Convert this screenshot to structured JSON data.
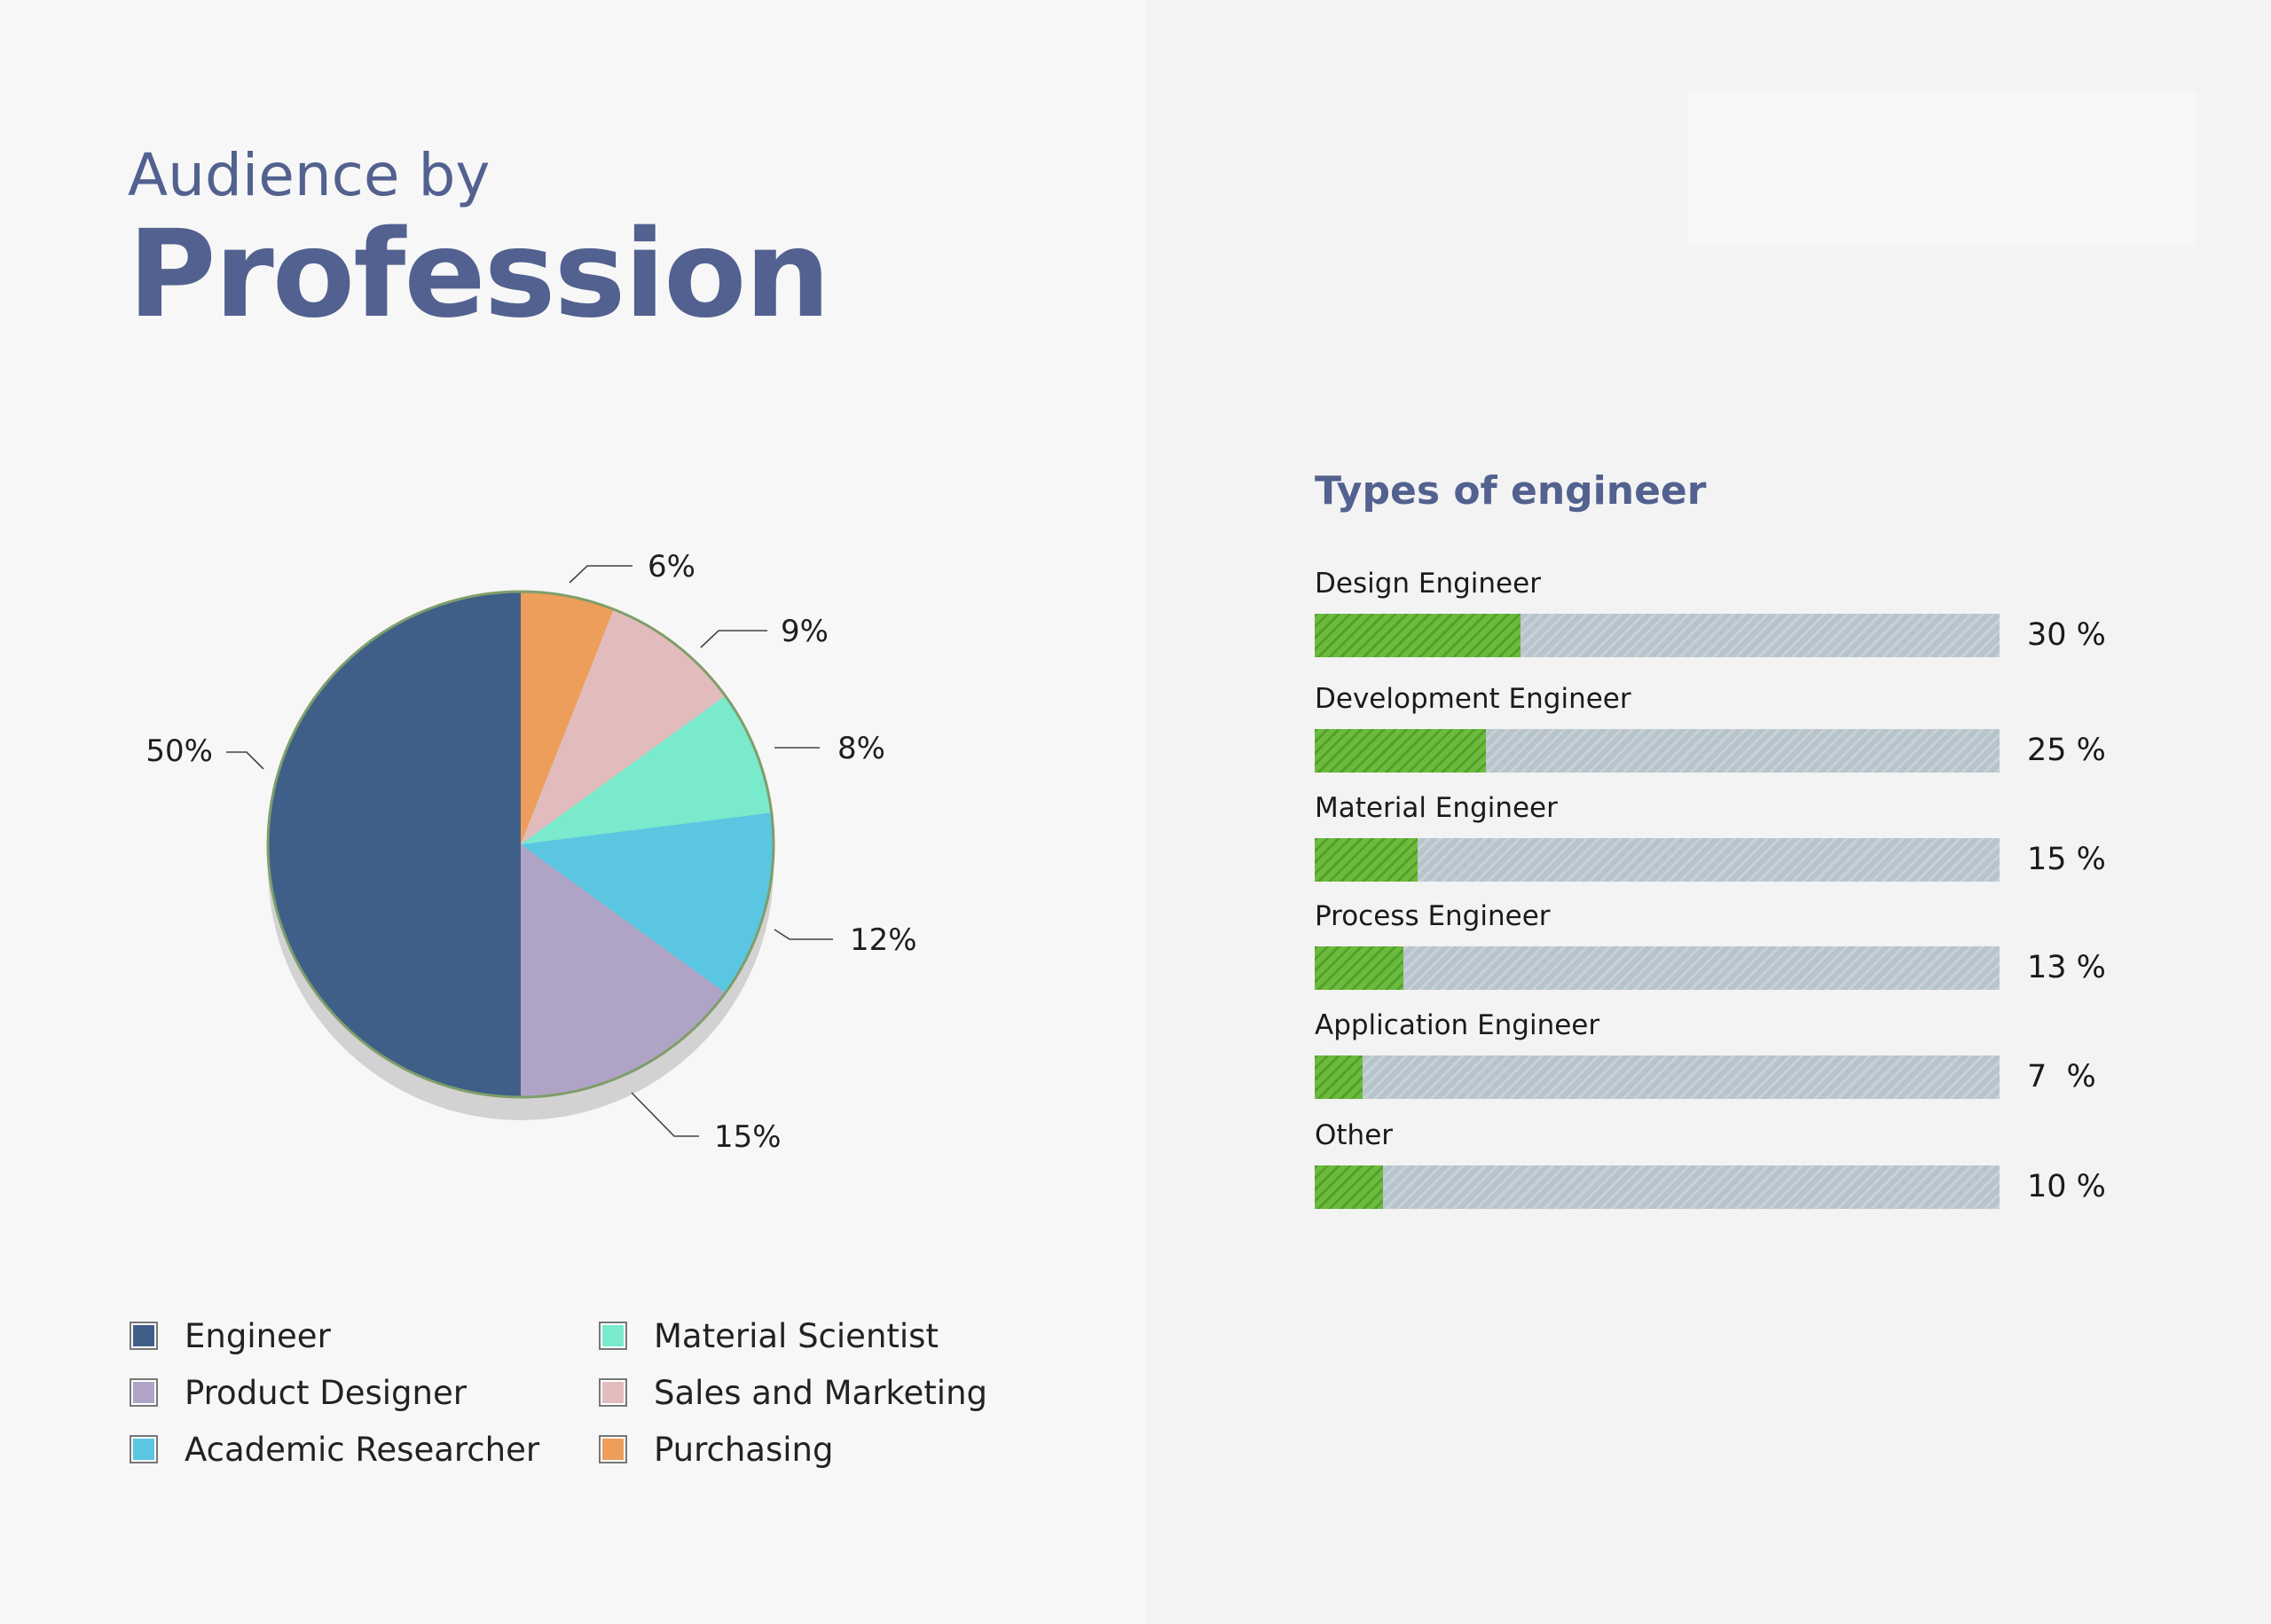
{
  "header": {
    "title_line1": "Audience by",
    "title_line2": "Profession"
  },
  "chart_data": [
    {
      "type": "pie",
      "title": "",
      "slices": [
        {
          "name": "Engineer",
          "value": 50,
          "label": "50%",
          "color": "#3f5f89"
        },
        {
          "name": "Product Designer",
          "value": 15,
          "label": "15%",
          "color": "#b0a4c6"
        },
        {
          "name": "Academic Researcher",
          "value": 12,
          "label": "12%",
          "color": "#5bc6e2"
        },
        {
          "name": "Material Scientist",
          "value": 8,
          "label": "8%",
          "color": "#79eacc"
        },
        {
          "name": "Sales and Marketing",
          "value": 9,
          "label": "9%",
          "color": "#e2bcbc"
        },
        {
          "name": "Purchasing",
          "value": 6,
          "label": "6%",
          "color": "#ec9e5a"
        }
      ],
      "legend": {
        "placement": "bottom",
        "columns": 2
      }
    },
    {
      "type": "bar",
      "orientation": "horizontal",
      "title": "Types of engineer",
      "categories": [
        "Design Engineer",
        "Development Engineer",
        "Material Engineer",
        "Process Engineer",
        "Application Engineer",
        "Other"
      ],
      "values": [
        30,
        25,
        15,
        13,
        7,
        10
      ],
      "value_labels": [
        "30 %",
        "25 %",
        "15 %",
        "13 %",
        "7  %",
        "10 %"
      ],
      "xlim": [
        0,
        100
      ],
      "colors": {
        "fill": "#6cbb3c",
        "track": "#b8c4cc"
      }
    }
  ],
  "colors": {
    "title": "#52618f",
    "pie_outline": "#7f9e6a",
    "pie_shadow": "#d2d2d2"
  }
}
